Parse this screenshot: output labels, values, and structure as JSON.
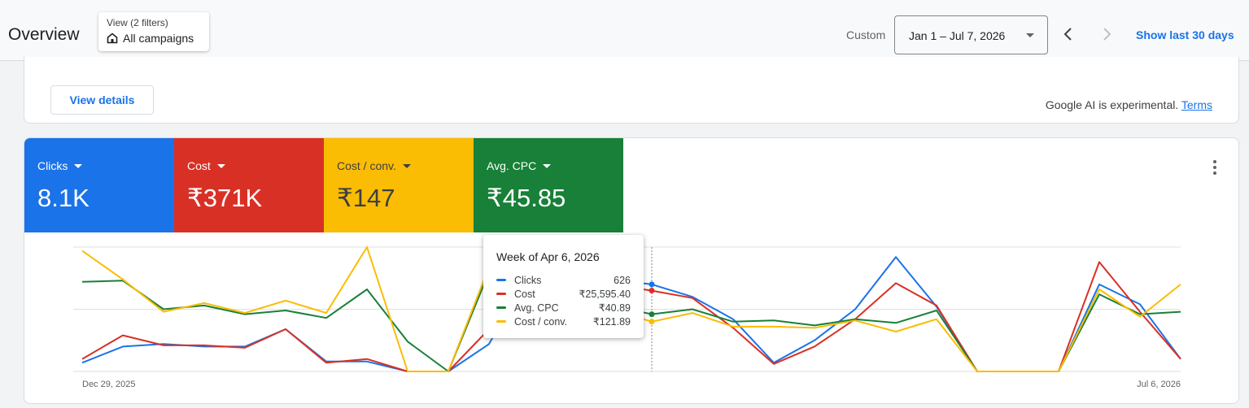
{
  "header": {
    "title": "Overview",
    "filter_small": "View (2 filters)",
    "filter_big": "All campaigns",
    "custom_label": "Custom",
    "date_range": "Jan 1 – Jul 7, 2026",
    "show_last": "Show last 30 days"
  },
  "top_card": {
    "view_details": "View details",
    "ai_note": "Google AI is experimental.",
    "terms": "Terms"
  },
  "metrics": [
    {
      "label": "Clicks",
      "value": "8.1K",
      "color": "#1a73e8"
    },
    {
      "label": "Cost",
      "value": "₹371K",
      "color": "#d93025"
    },
    {
      "label": "Cost / conv.",
      "value": "₹147",
      "color": "#fbbc04"
    },
    {
      "label": "Avg. CPC",
      "value": "₹45.85",
      "color": "#188038"
    }
  ],
  "tooltip": {
    "title": "Week of Apr 6, 2026",
    "rows": [
      {
        "name": "Clicks",
        "value": "626",
        "color": "#1a73e8"
      },
      {
        "name": "Cost",
        "value": "₹25,595.40",
        "color": "#d93025"
      },
      {
        "name": "Avg. CPC",
        "value": "₹40.89",
        "color": "#188038"
      },
      {
        "name": "Cost / conv.",
        "value": "₹121.89",
        "color": "#fbbc04"
      }
    ]
  },
  "chart_data": {
    "type": "line",
    "x_first_label": "Dec 29, 2025",
    "x_last_label": "Jul 6, 2026",
    "x": [
      "Dec 29, 2025",
      "Jan 5, 2026",
      "Jan 12, 2026",
      "Jan 19, 2026",
      "Jan 26, 2026",
      "Feb 2, 2026",
      "Feb 9, 2026",
      "Feb 16, 2026",
      "Feb 23, 2026",
      "Mar 2, 2026",
      "Mar 9, 2026",
      "Mar 16, 2026",
      "Mar 23, 2026",
      "Mar 30, 2026",
      "Apr 6, 2026",
      "Apr 13, 2026",
      "Apr 20, 2026",
      "Apr 27, 2026",
      "May 4, 2026",
      "May 11, 2026",
      "May 18, 2026",
      "May 25, 2026",
      "Jun 1, 2026",
      "Jun 8, 2026",
      "Jun 15, 2026",
      "Jun 22, 2026",
      "Jun 29, 2026",
      "Jul 6, 2026"
    ],
    "series": [
      {
        "name": "Clicks",
        "color": "#1a73e8",
        "values": [
          0.07,
          0.2,
          0.22,
          0.2,
          0.2,
          0.34,
          0.08,
          0.08,
          0.0,
          0.0,
          0.22,
          0.8,
          0.8,
          0.74,
          0.7,
          0.6,
          0.42,
          0.07,
          0.25,
          0.5,
          0.92,
          0.52,
          0.0,
          0.0,
          0.0,
          0.7,
          0.54,
          0.1
        ]
      },
      {
        "name": "Cost",
        "color": "#d93025",
        "values": [
          0.1,
          0.29,
          0.21,
          0.21,
          0.19,
          0.34,
          0.07,
          0.1,
          0.0,
          0.0,
          0.34,
          0.8,
          0.76,
          0.7,
          0.65,
          0.59,
          0.35,
          0.06,
          0.2,
          0.42,
          0.71,
          0.53,
          0.0,
          0.0,
          0.0,
          0.88,
          0.48,
          0.1
        ]
      },
      {
        "name": "Avg. CPC",
        "color": "#188038",
        "values": [
          0.72,
          0.73,
          0.5,
          0.53,
          0.46,
          0.49,
          0.43,
          0.66,
          0.24,
          0.0,
          0.8,
          0.8,
          0.8,
          0.53,
          0.46,
          0.5,
          0.4,
          0.41,
          0.37,
          0.42,
          0.39,
          0.49,
          0.0,
          0.0,
          0.0,
          0.62,
          0.46,
          0.48
        ]
      },
      {
        "name": "Cost / conv.",
        "color": "#fbbc04",
        "values": [
          0.97,
          0.74,
          0.48,
          0.55,
          0.47,
          0.57,
          0.47,
          1.0,
          0.0,
          0.0,
          0.84,
          0.84,
          0.55,
          0.5,
          0.4,
          0.47,
          0.36,
          0.36,
          0.35,
          0.41,
          0.32,
          0.42,
          0.0,
          0.0,
          0.0,
          0.66,
          0.44,
          0.7
        ]
      }
    ],
    "highlight_index": 14,
    "grid": true,
    "ylim": [
      0,
      1
    ]
  }
}
